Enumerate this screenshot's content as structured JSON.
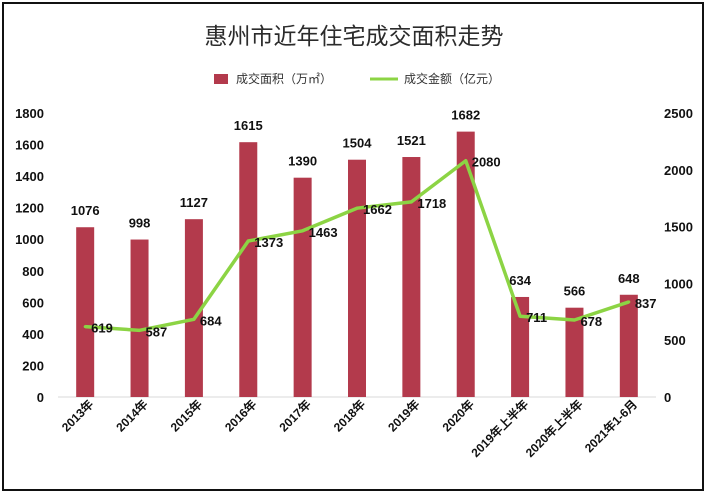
{
  "chart_data": {
    "type": "bar",
    "title": "惠州市近年住宅成交面积走势",
    "categories": [
      "2013年",
      "2014年",
      "2015年",
      "2016年",
      "2017年",
      "2018年",
      "2019年",
      "2020年",
      "2019年上半年",
      "2020年上半年",
      "2021年1-6月"
    ],
    "series": [
      {
        "name": "成交面积（万㎡）",
        "type": "bar",
        "axis": "left",
        "color": "#b33a4c",
        "values": [
          1076,
          998,
          1127,
          1615,
          1390,
          1504,
          1521,
          1682,
          634,
          566,
          648
        ]
      },
      {
        "name": "成交金额（亿元）",
        "type": "line",
        "axis": "right",
        "color": "#8cd444",
        "values": [
          619,
          587,
          684,
          1373,
          1463,
          1662,
          1718,
          2080,
          711,
          678,
          837
        ]
      }
    ],
    "y_left": {
      "lim": [
        0,
        1800
      ],
      "ticks": [
        0,
        200,
        400,
        600,
        800,
        1000,
        1200,
        1400,
        1600,
        1800
      ]
    },
    "y_right": {
      "lim": [
        0,
        2500
      ],
      "ticks": [
        0,
        500,
        1000,
        1500,
        2000,
        2500
      ]
    },
    "grid": false,
    "legend": "top-center"
  }
}
